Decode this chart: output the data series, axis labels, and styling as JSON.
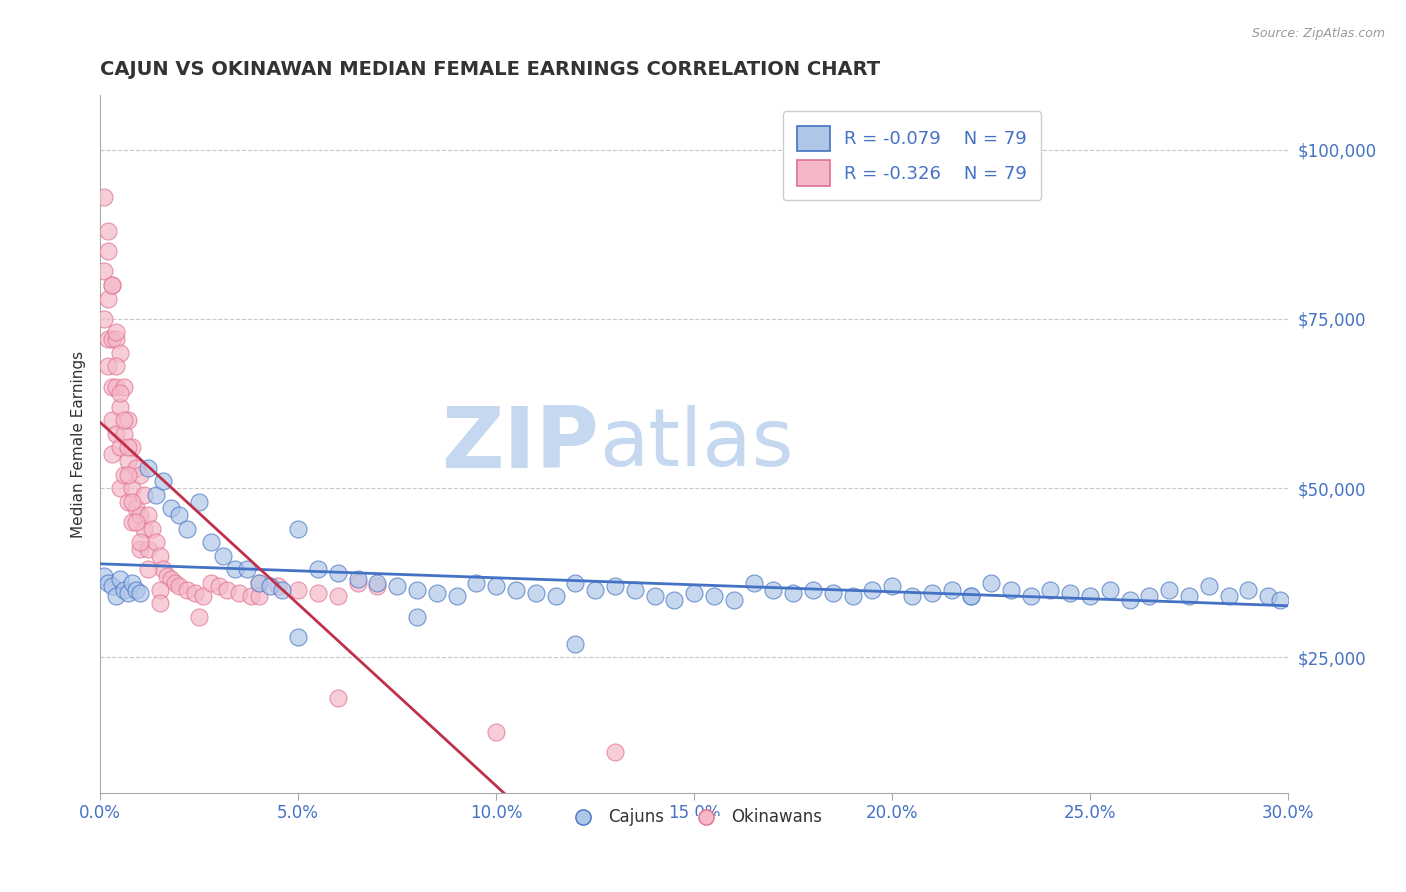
{
  "title": "CAJUN VS OKINAWAN MEDIAN FEMALE EARNINGS CORRELATION CHART",
  "source_text": "Source: ZipAtlas.com",
  "ylabel": "Median Female Earnings",
  "xmin": 0.0,
  "xmax": 0.3,
  "ymin": 5000,
  "ymax": 108000,
  "yticks": [
    25000,
    50000,
    75000,
    100000
  ],
  "ytick_labels": [
    "$25,000",
    "$50,000",
    "$75,000",
    "$100,000"
  ],
  "xticks": [
    0.0,
    0.05,
    0.1,
    0.15,
    0.2,
    0.25,
    0.3
  ],
  "xtick_labels": [
    "0.0%",
    "5.0%",
    "10.0%",
    "15.0%",
    "20.0%",
    "25.0%",
    "30.0%"
  ],
  "background_color": "#ffffff",
  "grid_color": "#c8c8c8",
  "title_color": "#333333",
  "axis_label_color": "#4472c4",
  "cajun_color": "#aec6e8",
  "cajun_edge_color": "#4472c4",
  "okinawan_color": "#f4b8c8",
  "okinawan_edge_color": "#e07090",
  "cajun_line_color": "#4472c4",
  "okinawan_line_color": "#c0304a",
  "R_cajun": -0.079,
  "N_cajun": 79,
  "R_okinawan": -0.326,
  "N_okinawan": 79,
  "watermark_zip": "ZIP",
  "watermark_atlas": "atlas",
  "watermark_color_zip": "#c5d8ef",
  "watermark_color_atlas": "#c5d8ef",
  "legend_label_cajun": "Cajuns",
  "legend_label_okinawan": "Okinawans",
  "cajuns_x": [
    0.001,
    0.002,
    0.003,
    0.004,
    0.005,
    0.006,
    0.007,
    0.008,
    0.009,
    0.01,
    0.012,
    0.014,
    0.016,
    0.018,
    0.02,
    0.022,
    0.025,
    0.028,
    0.031,
    0.034,
    0.037,
    0.04,
    0.043,
    0.046,
    0.05,
    0.055,
    0.06,
    0.065,
    0.07,
    0.075,
    0.08,
    0.085,
    0.09,
    0.095,
    0.1,
    0.105,
    0.11,
    0.115,
    0.12,
    0.125,
    0.13,
    0.135,
    0.14,
    0.145,
    0.15,
    0.155,
    0.16,
    0.165,
    0.17,
    0.175,
    0.18,
    0.185,
    0.19,
    0.195,
    0.2,
    0.205,
    0.21,
    0.215,
    0.22,
    0.225,
    0.23,
    0.235,
    0.24,
    0.245,
    0.25,
    0.255,
    0.26,
    0.265,
    0.27,
    0.275,
    0.28,
    0.285,
    0.29,
    0.295,
    0.298,
    0.05,
    0.08,
    0.12,
    0.22
  ],
  "cajuns_y": [
    37000,
    36000,
    35500,
    34000,
    36500,
    35000,
    34500,
    36000,
    35000,
    34500,
    53000,
    49000,
    51000,
    47000,
    46000,
    44000,
    48000,
    42000,
    40000,
    38000,
    38000,
    36000,
    35500,
    35000,
    44000,
    38000,
    37500,
    36500,
    36000,
    35500,
    35000,
    34500,
    34000,
    36000,
    35500,
    35000,
    34500,
    34000,
    36000,
    35000,
    35500,
    35000,
    34000,
    33500,
    34500,
    34000,
    33500,
    36000,
    35000,
    34500,
    35000,
    34500,
    34000,
    35000,
    35500,
    34000,
    34500,
    35000,
    34000,
    36000,
    35000,
    34000,
    35000,
    34500,
    34000,
    35000,
    33500,
    34000,
    35000,
    34000,
    35500,
    34000,
    35000,
    34000,
    33500,
    28000,
    31000,
    27000,
    34000
  ],
  "okinawans_x": [
    0.001,
    0.001,
    0.001,
    0.002,
    0.002,
    0.002,
    0.002,
    0.003,
    0.003,
    0.003,
    0.003,
    0.003,
    0.004,
    0.004,
    0.004,
    0.005,
    0.005,
    0.005,
    0.005,
    0.006,
    0.006,
    0.006,
    0.007,
    0.007,
    0.007,
    0.008,
    0.008,
    0.008,
    0.009,
    0.009,
    0.01,
    0.01,
    0.01,
    0.011,
    0.011,
    0.012,
    0.012,
    0.013,
    0.014,
    0.015,
    0.016,
    0.017,
    0.018,
    0.019,
    0.02,
    0.022,
    0.024,
    0.026,
    0.028,
    0.03,
    0.032,
    0.035,
    0.038,
    0.04,
    0.045,
    0.05,
    0.055,
    0.06,
    0.065,
    0.07,
    0.002,
    0.003,
    0.004,
    0.004,
    0.005,
    0.006,
    0.007,
    0.007,
    0.008,
    0.009,
    0.01,
    0.012,
    0.015,
    0.025,
    0.04,
    0.06,
    0.1,
    0.13,
    0.015
  ],
  "okinawans_y": [
    93000,
    82000,
    75000,
    85000,
    78000,
    72000,
    68000,
    80000,
    72000,
    65000,
    60000,
    55000,
    72000,
    65000,
    58000,
    70000,
    62000,
    56000,
    50000,
    65000,
    58000,
    52000,
    60000,
    54000,
    48000,
    56000,
    50000,
    45000,
    53000,
    47000,
    52000,
    46000,
    41000,
    49000,
    44000,
    46000,
    41000,
    44000,
    42000,
    40000,
    38000,
    37000,
    36500,
    36000,
    35500,
    35000,
    34500,
    34000,
    36000,
    35500,
    35000,
    34500,
    34000,
    36000,
    35500,
    35000,
    34500,
    34000,
    36000,
    35500,
    88000,
    80000,
    73000,
    68000,
    64000,
    60000,
    56000,
    52000,
    48000,
    45000,
    42000,
    38000,
    35000,
    31000,
    34000,
    19000,
    14000,
    11000,
    33000
  ]
}
